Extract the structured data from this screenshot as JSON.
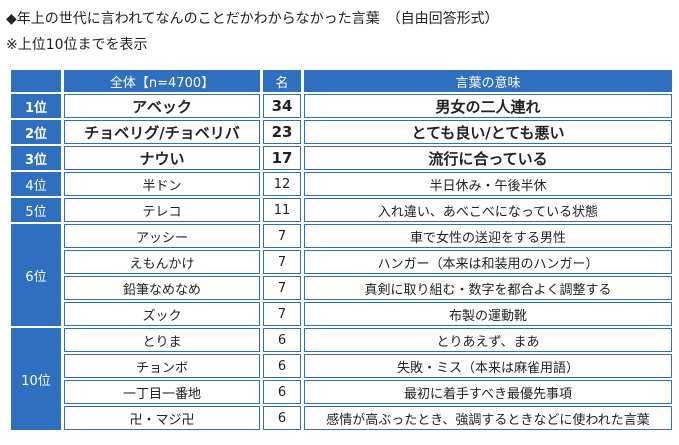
{
  "header": {
    "title": "◆年上の世代に言われてなんのことだかわからなかった言葉　（自由回答形式）",
    "note": "※上位10位までを表示"
  },
  "table": {
    "columns": [
      "全体【n=4700】",
      "名",
      "言葉の意味"
    ],
    "groups": [
      {
        "rank": "1位",
        "rows": [
          [
            "アベック",
            34,
            "男女の二人連れ"
          ]
        ]
      },
      {
        "rank": "2位",
        "rows": [
          [
            "チョベリグ/チョベリバ",
            23,
            "とても良い/とても悪い"
          ]
        ]
      },
      {
        "rank": "3位",
        "rows": [
          [
            "ナウい",
            17,
            "流行に合っている"
          ]
        ]
      },
      {
        "rank": "4位",
        "rows": [
          [
            "半ドン",
            12,
            "半日休み・午後半休"
          ]
        ]
      },
      {
        "rank": "5位",
        "rows": [
          [
            "テレコ",
            11,
            "入れ違い、あべこべになっている状態"
          ]
        ]
      },
      {
        "rank": "6位",
        "rows": [
          [
            "アッシー",
            7,
            "車で女性の送迎をする男性"
          ],
          [
            "えもんかけ",
            7,
            "ハンガー（本来は和装用のハンガー）"
          ],
          [
            "鉛筆なめなめ",
            7,
            "真剣に取り組む・数字を都合よく調整する"
          ],
          [
            "ズック",
            7,
            "布製の運動靴"
          ]
        ]
      },
      {
        "rank": "10位",
        "rows": [
          [
            "とりま",
            6,
            "とりあえず、まあ"
          ],
          [
            "チョンボ",
            6,
            "失敗・ミス（本来は麻雀用語）"
          ],
          [
            "一丁目一番地",
            6,
            "最初に着手すべき最優先事項"
          ],
          [
            "卍・マジ卍",
            6,
            "感情が高ぶったとき、強調するときなどに使われた言葉"
          ]
        ]
      }
    ]
  }
}
